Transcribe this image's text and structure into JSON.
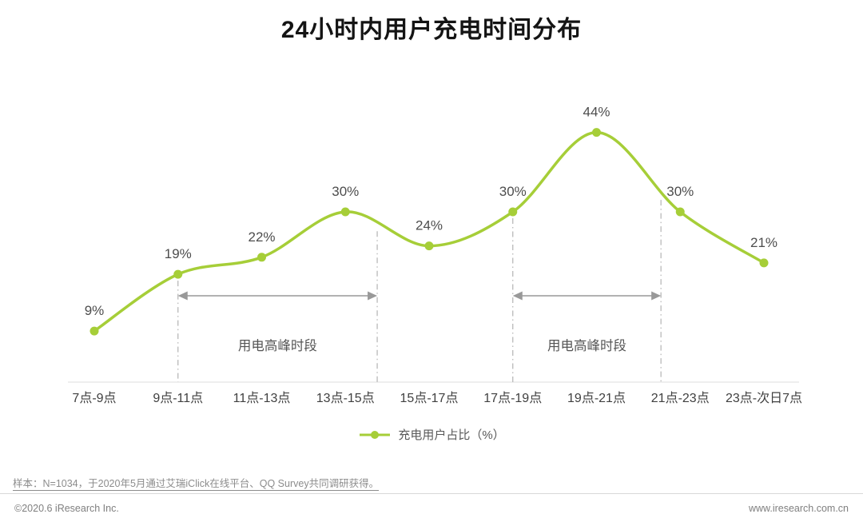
{
  "chart_data": {
    "type": "line",
    "title": "24小时内用户充电时间分布",
    "categories": [
      "7点-9点",
      "9点-11点",
      "11点-13点",
      "13点-15点",
      "15点-17点",
      "17点-19点",
      "19点-21点",
      "21点-23点",
      "23点-次日7点"
    ],
    "values": [
      9,
      19,
      22,
      30,
      24,
      30,
      44,
      30,
      21
    ],
    "unit": "%",
    "ylim": [
      0,
      50
    ],
    "line_color": "#a6ce38",
    "value_label_color": "#4d4d4d",
    "axis_label_color": "#404040",
    "annotation_color": "#999999",
    "legend": {
      "label": "充电用户占比（%）",
      "position": "bottom"
    },
    "annotations": [
      {
        "label": "用电高峰时段",
        "from_index": 1,
        "to_index": 3.38
      },
      {
        "label": "用电高峰时段",
        "from_index": 5,
        "to_index": 6.77
      }
    ]
  },
  "footer": {
    "note": "样本：N=1034，于2020年5月通过艾瑞iClick在线平台、QQ Survey共同调研获得。",
    "copyright": "©2020.6 iResearch Inc.",
    "website": "www.iresearch.com.cn"
  }
}
